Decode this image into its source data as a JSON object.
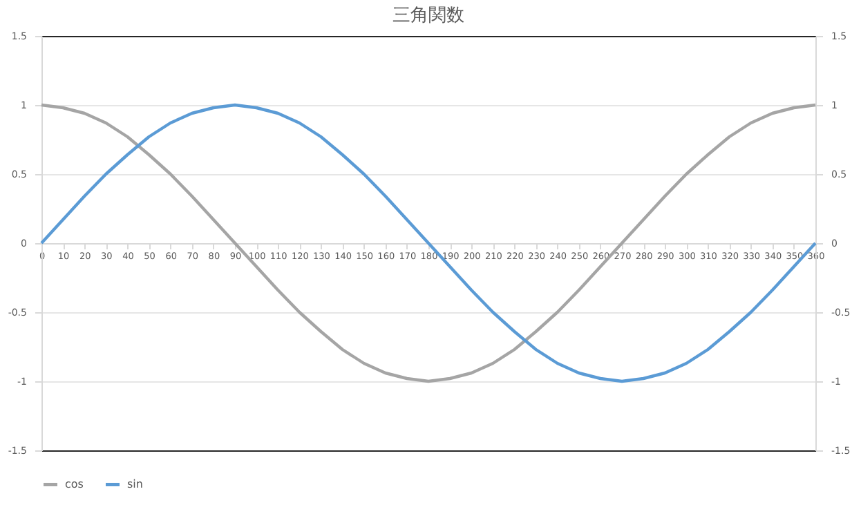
{
  "chart_data": {
    "type": "line",
    "title": "三角関数",
    "x": [
      0,
      10,
      20,
      30,
      40,
      50,
      60,
      70,
      80,
      90,
      100,
      110,
      120,
      130,
      140,
      150,
      160,
      170,
      180,
      190,
      200,
      210,
      220,
      230,
      240,
      250,
      260,
      270,
      280,
      290,
      300,
      310,
      320,
      330,
      340,
      350,
      360
    ],
    "series": [
      {
        "name": "cos",
        "color": "#a5a5a5",
        "values": [
          1,
          0.98,
          0.94,
          0.87,
          0.77,
          0.64,
          0.5,
          0.34,
          0.17,
          0,
          -0.17,
          -0.34,
          -0.5,
          -0.64,
          -0.77,
          -0.87,
          -0.94,
          -0.98,
          -1,
          -0.98,
          -0.94,
          -0.87,
          -0.77,
          -0.64,
          -0.5,
          -0.34,
          -0.17,
          0,
          0.17,
          0.34,
          0.5,
          0.64,
          0.77,
          0.87,
          0.94,
          0.98,
          1
        ]
      },
      {
        "name": "sin",
        "color": "#5b9bd5",
        "values": [
          0,
          0.17,
          0.34,
          0.5,
          0.64,
          0.77,
          0.87,
          0.94,
          0.98,
          1,
          0.98,
          0.94,
          0.87,
          0.77,
          0.64,
          0.5,
          0.34,
          0.17,
          0,
          -0.17,
          -0.34,
          -0.5,
          -0.64,
          -0.77,
          -0.87,
          -0.94,
          -0.98,
          -1,
          -0.98,
          -0.94,
          -0.87,
          -0.77,
          -0.64,
          -0.5,
          -0.34,
          -0.17,
          0
        ]
      }
    ],
    "xlim": [
      0,
      360
    ],
    "xticks": [
      0,
      10,
      20,
      30,
      40,
      50,
      60,
      70,
      80,
      90,
      100,
      110,
      120,
      130,
      140,
      150,
      160,
      170,
      180,
      190,
      200,
      210,
      220,
      230,
      240,
      250,
      260,
      270,
      280,
      290,
      300,
      310,
      320,
      330,
      340,
      350,
      360
    ],
    "ylim": [
      -1.5,
      1.5
    ],
    "yticks": [
      -1.5,
      -1,
      -0.5,
      0,
      0.5,
      1,
      1.5
    ],
    "y2lim": [
      -1.5,
      1.5
    ],
    "y2ticks": [
      -1.5,
      -1,
      -0.5,
      0,
      0.5,
      1,
      1.5
    ],
    "grid": "y",
    "legend": "bottom",
    "marker": "none",
    "line_style": "solid"
  }
}
